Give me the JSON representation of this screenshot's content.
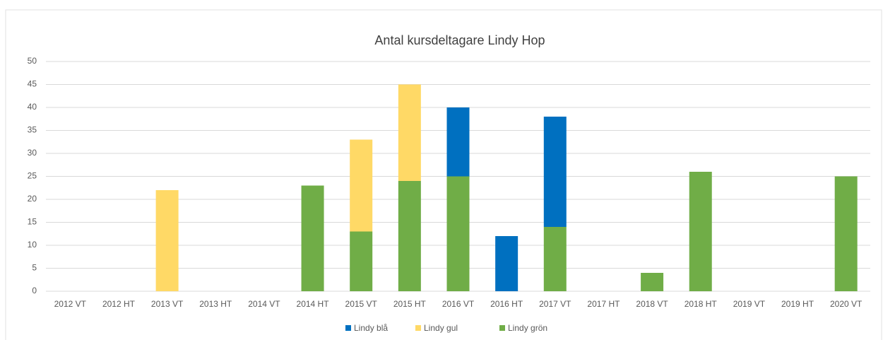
{
  "chart_data": {
    "type": "stacked_bar",
    "title": "Antal kursdeltagare Lindy Hop",
    "categories": [
      "2012 VT",
      "2012 HT",
      "2013 VT",
      "2013 HT",
      "2014 VT",
      "2014 HT",
      "2015 VT",
      "2015 HT",
      "2016 VT",
      "2016 HT",
      "2017 VT",
      "2017 HT",
      "2018 VT",
      "2018 HT",
      "2019 VT",
      "2019 HT",
      "2020 VT"
    ],
    "series": [
      {
        "name": "Lindy blå",
        "color": "#0070c0",
        "values": [
          0,
          0,
          0,
          0,
          0,
          0,
          0,
          0,
          15,
          12,
          24,
          0,
          0,
          0,
          0,
          0,
          0
        ]
      },
      {
        "name": "Lindy gul",
        "color": "#ffd966",
        "values": [
          0,
          0,
          22,
          0,
          0,
          0,
          20,
          21,
          0,
          0,
          0,
          0,
          0,
          0,
          0,
          0,
          0
        ]
      },
      {
        "name": "Lindy grön",
        "color": "#70ad47",
        "values": [
          0,
          0,
          0,
          0,
          0,
          23,
          13,
          24,
          25,
          0,
          14,
          0,
          4,
          26,
          0,
          0,
          25
        ]
      }
    ],
    "ylim": [
      0,
      50
    ],
    "yticks": [
      0,
      5,
      10,
      15,
      20,
      25,
      30,
      35,
      40,
      45,
      50
    ],
    "grid": true,
    "legend": "bottom"
  }
}
